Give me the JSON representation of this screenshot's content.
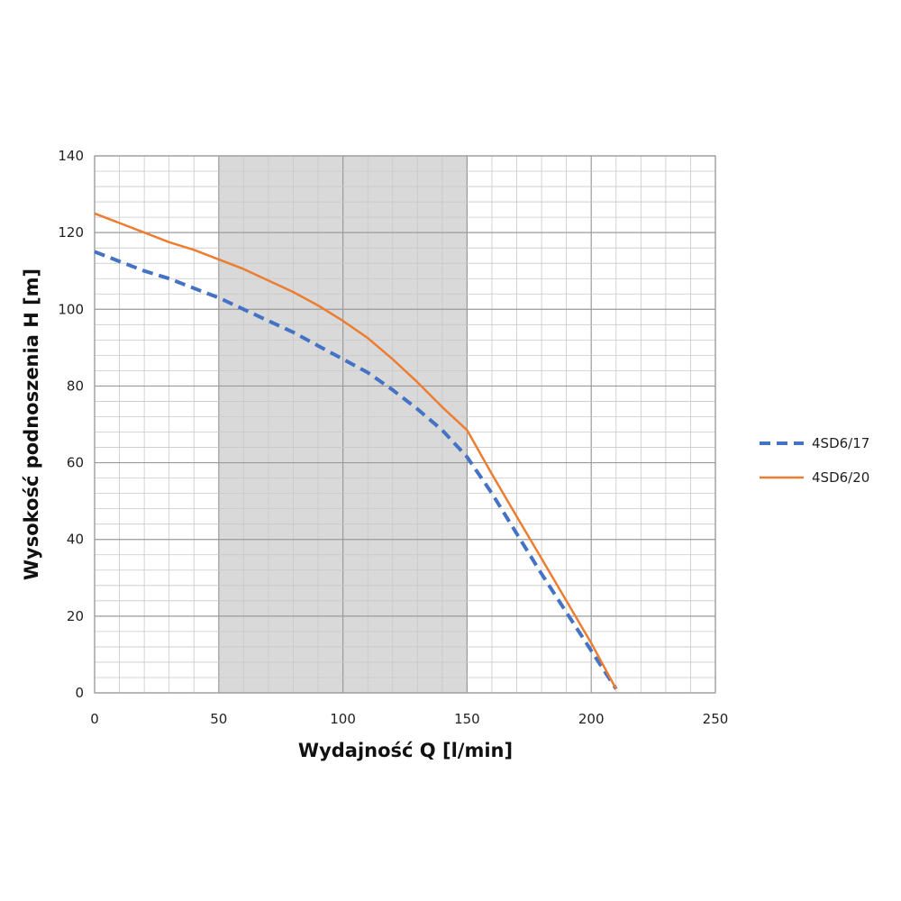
{
  "chart_data": {
    "type": "line",
    "xlabel": "Wydajność Q [l/min]",
    "ylabel": "Wysokość podnoszenia H [m]",
    "xlim": [
      0,
      250
    ],
    "ylim": [
      0,
      140
    ],
    "x_ticks": [
      "0",
      "50",
      "100",
      "150",
      "200",
      "250"
    ],
    "y_ticks": [
      "0",
      "20",
      "40",
      "60",
      "80",
      "100",
      "120",
      "140"
    ],
    "x_major_step": 50,
    "y_major_step": 20,
    "x_minor_step": 10,
    "y_minor_step": 4,
    "grid": true,
    "shaded_region": {
      "x": [
        50,
        150
      ],
      "color": "#d9d9d9"
    },
    "legend": "right",
    "series": [
      {
        "name": "4SD6/17",
        "color": "#4472c4",
        "style": "dashed",
        "x": [
          0,
          10,
          20,
          30,
          40,
          50,
          60,
          70,
          80,
          90,
          100,
          110,
          120,
          130,
          140,
          150,
          160,
          170,
          180,
          190,
          200,
          210
        ],
        "y": [
          115,
          112.5,
          110,
          108,
          105.5,
          103,
          100,
          97,
          94,
          90.5,
          87,
          83.5,
          79,
          74,
          68.5,
          61.5,
          52,
          41.5,
          31,
          21,
          11,
          1
        ]
      },
      {
        "name": "4SD6/20",
        "color": "#ed7d31",
        "style": "solid",
        "x": [
          0,
          10,
          20,
          30,
          40,
          50,
          60,
          70,
          80,
          90,
          100,
          110,
          120,
          130,
          140,
          150,
          160,
          170,
          180,
          190,
          200,
          210
        ],
        "y": [
          125,
          122.5,
          120,
          117.5,
          115.5,
          113,
          110.5,
          107.5,
          104.5,
          101,
          97,
          92.5,
          87,
          81,
          74.5,
          68.5,
          57,
          46,
          35,
          24,
          13,
          1
        ]
      }
    ]
  }
}
